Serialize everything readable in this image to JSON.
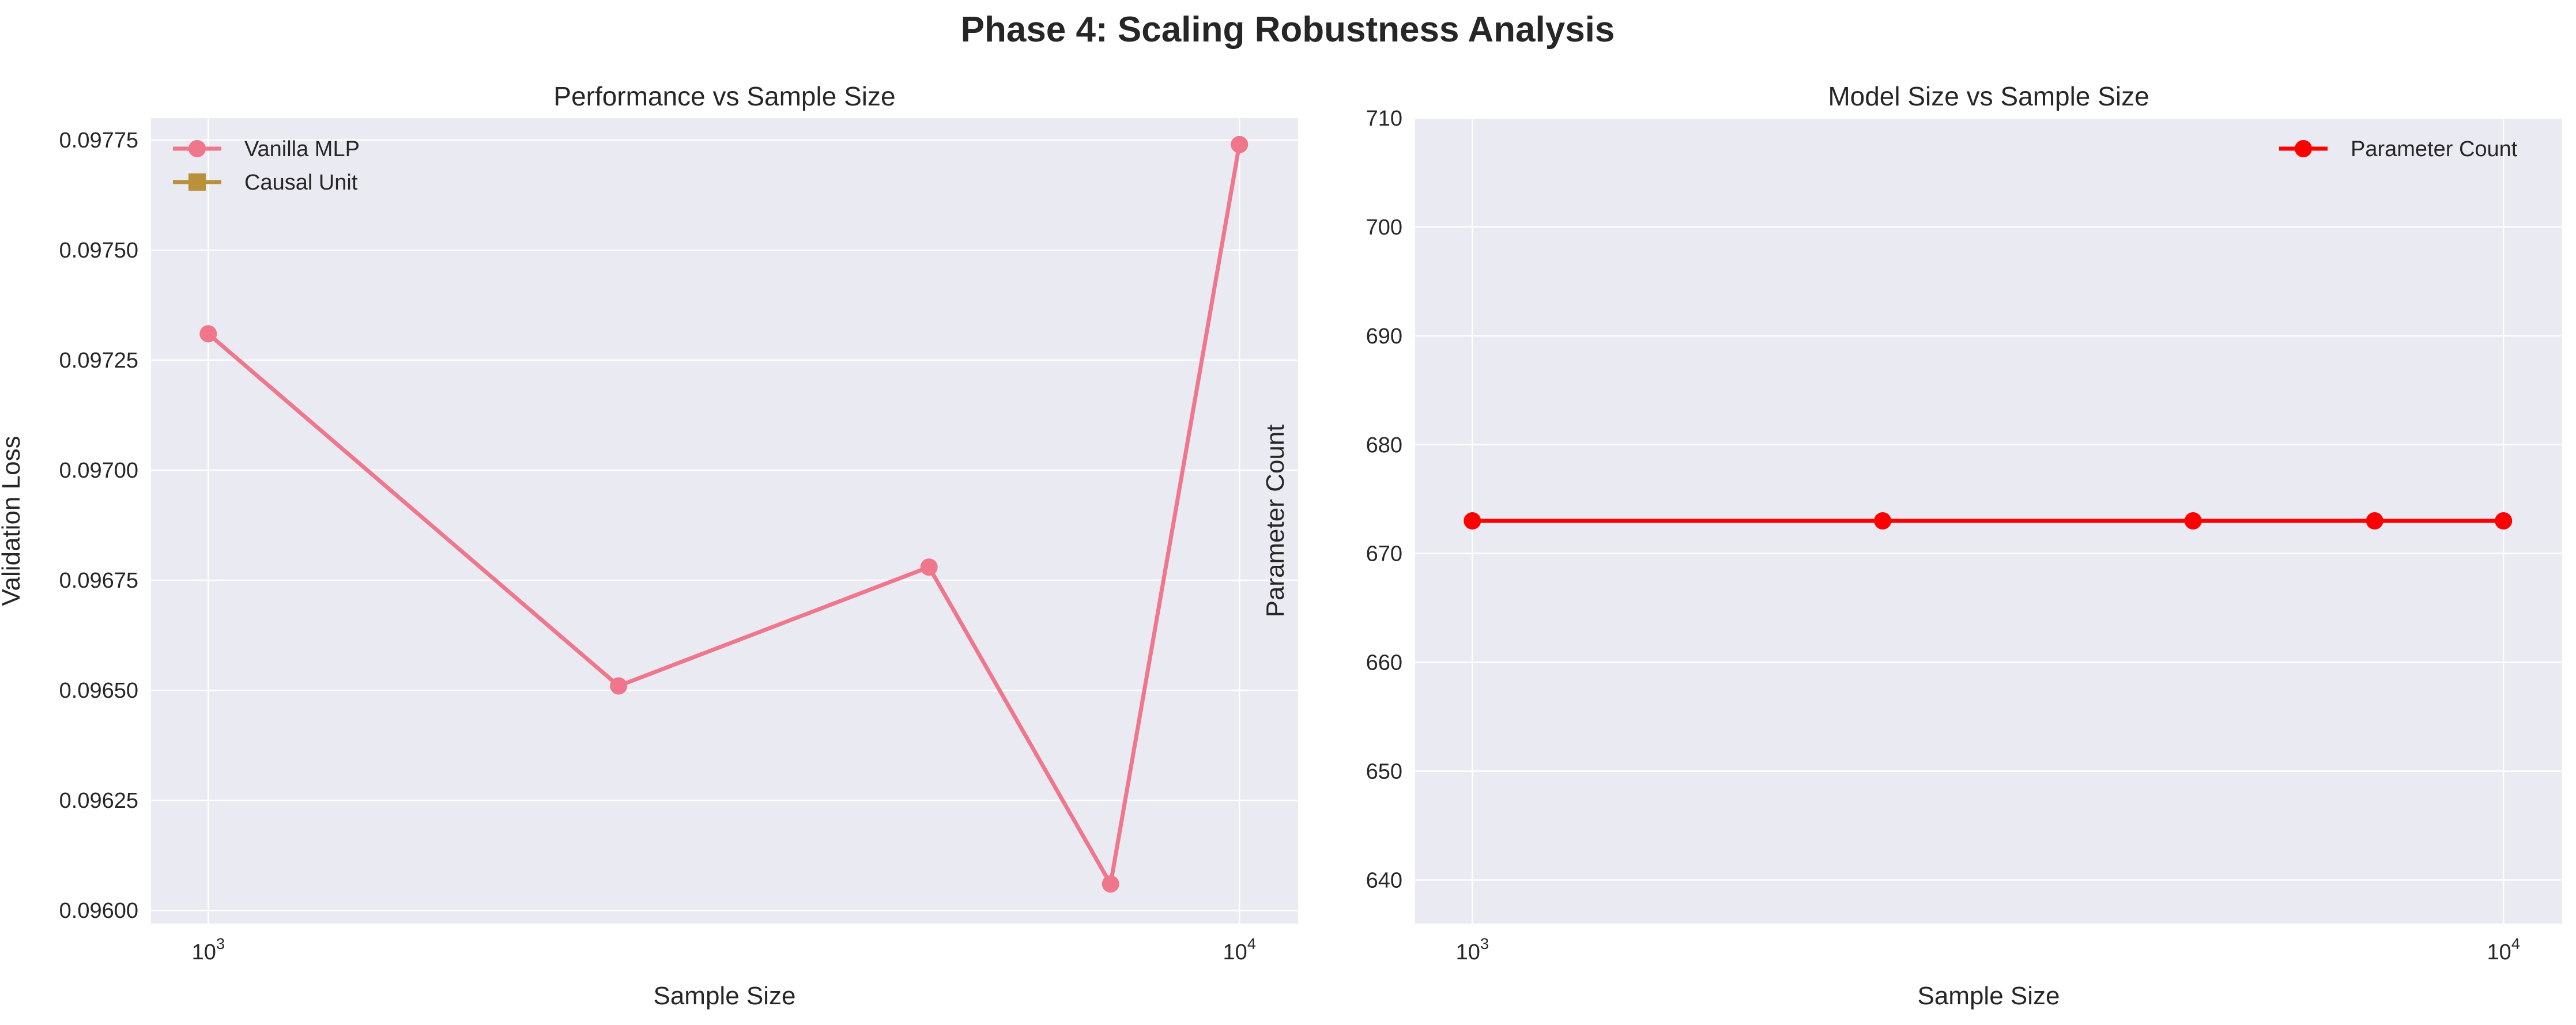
{
  "figure": {
    "suptitle": "Phase 4: Scaling Robustness Analysis"
  },
  "chart_data": [
    {
      "type": "line",
      "title": "Performance vs Sample Size",
      "xlabel": "Sample Size",
      "ylabel": "Validation Loss",
      "xscale": "log",
      "xlim": [
        880,
        11400
      ],
      "ylim": [
        0.09597,
        0.0978
      ],
      "xticks": [
        {
          "value": 1000,
          "base": "10",
          "exp": "3"
        },
        {
          "value": 10000,
          "base": "10",
          "exp": "4"
        }
      ],
      "yticks": [
        0.096,
        0.09625,
        0.0965,
        0.09675,
        0.097,
        0.09725,
        0.0975,
        0.09775
      ],
      "ytick_labels": [
        "0.09600",
        "0.09625",
        "0.09650",
        "0.09675",
        "0.09700",
        "0.09725",
        "0.09750",
        "0.09775"
      ],
      "grid": true,
      "legend_position": "upper-left",
      "series": [
        {
          "name": "Vanilla MLP",
          "color": "#f0768b",
          "marker": "circle",
          "x": [
            1000,
            2500,
            5000,
            7500,
            10000
          ],
          "y": [
            0.09731,
            0.09651,
            0.09678,
            0.09606,
            0.09774
          ]
        },
        {
          "name": "Causal Unit",
          "color": "#b8913a",
          "marker": "square",
          "x": [],
          "y": []
        }
      ]
    },
    {
      "type": "line",
      "title": "Model Size vs Sample Size",
      "xlabel": "Sample Size",
      "ylabel": "Parameter Count",
      "xscale": "log",
      "xlim": [
        880,
        11400
      ],
      "ylim": [
        636,
        710
      ],
      "xticks": [
        {
          "value": 1000,
          "base": "10",
          "exp": "3"
        },
        {
          "value": 10000,
          "base": "10",
          "exp": "4"
        }
      ],
      "yticks": [
        640,
        650,
        660,
        670,
        680,
        690,
        700,
        710
      ],
      "ytick_labels": [
        "640",
        "650",
        "660",
        "670",
        "680",
        "690",
        "700",
        "710"
      ],
      "grid": true,
      "legend_position": "upper-right",
      "series": [
        {
          "name": "Parameter Count",
          "color": "#ff0000",
          "marker": "circle",
          "x": [
            1000,
            2500,
            5000,
            7500,
            10000
          ],
          "y": [
            673,
            673,
            673,
            673,
            673
          ]
        }
      ]
    }
  ]
}
